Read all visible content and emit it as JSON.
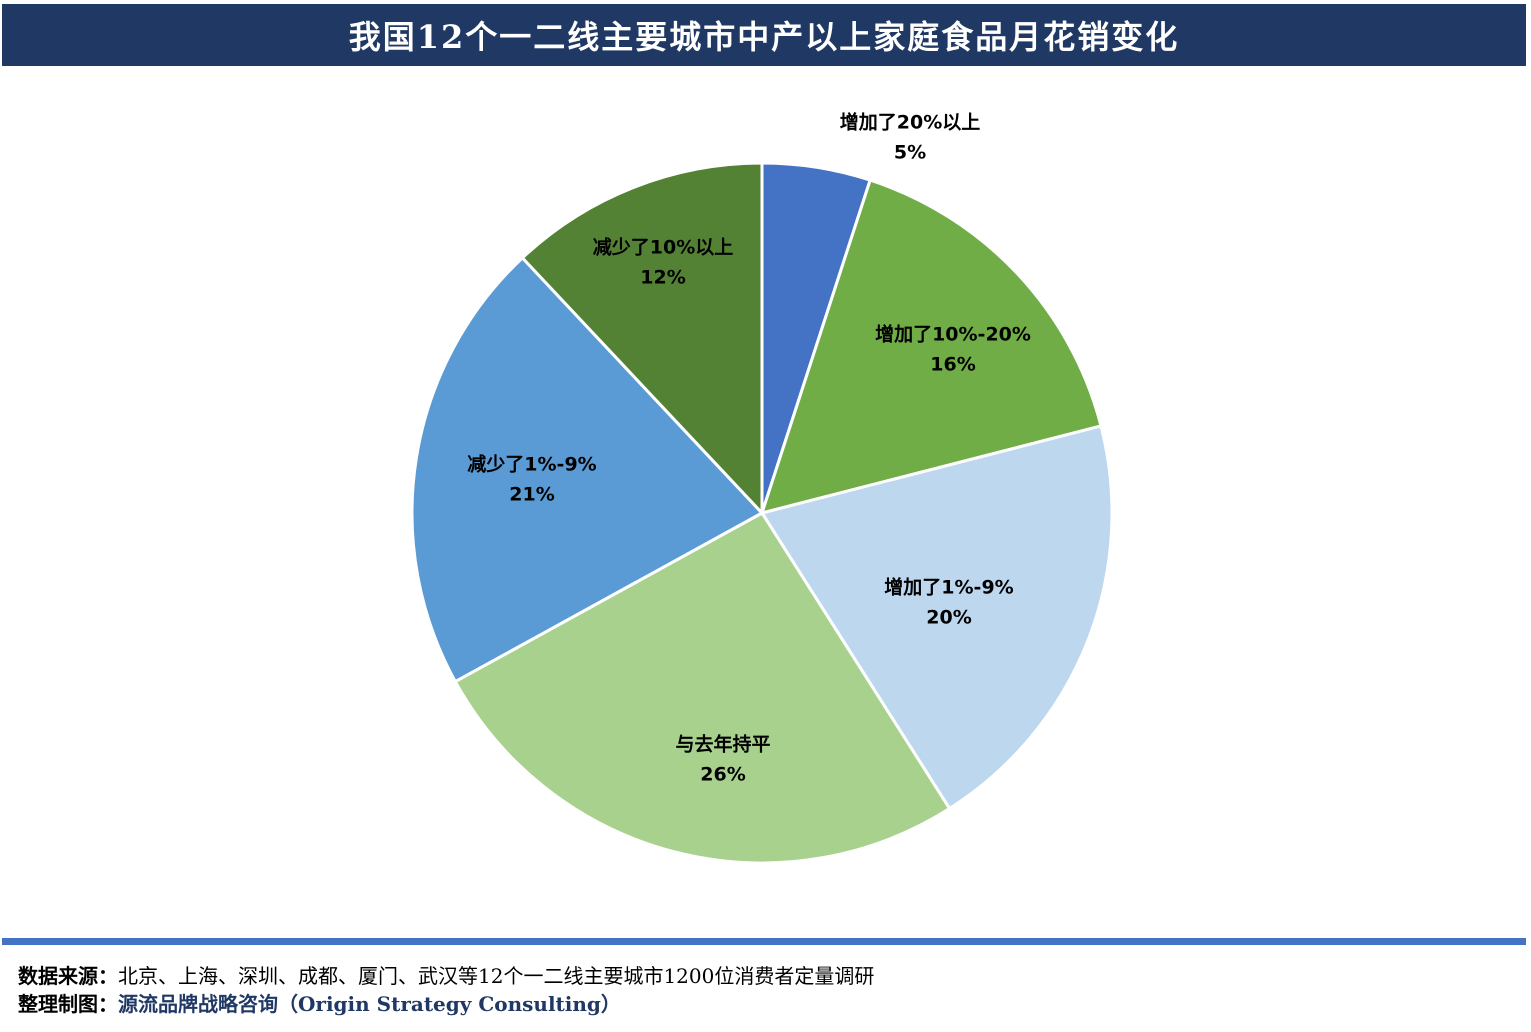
{
  "title": "我国12个一二线主要城市中产以上家庭食品月花销变化",
  "colors": {
    "title_bar": "#1f3864",
    "rule": "#4472c4",
    "credit_text": "#1f3864"
  },
  "chart_data": {
    "type": "pie",
    "title": "我国12个一二线主要城市中产以上家庭食品月花销变化",
    "start": "12 o'clock",
    "direction": "clockwise",
    "slices": [
      {
        "label": "增加了20%以上",
        "value": 5,
        "value_label": "5%",
        "color": "#4472c4"
      },
      {
        "label": "增加了10%-20%",
        "value": 16,
        "value_label": "16%",
        "color": "#70ad47"
      },
      {
        "label": "增加了1%-9%",
        "value": 20,
        "value_label": "20%",
        "color": "#bdd7ee"
      },
      {
        "label": "与去年持平",
        "value": 26,
        "value_label": "26%",
        "color": "#a9d18e"
      },
      {
        "label": "减少了1%-9%",
        "value": 21,
        "value_label": "21%",
        "color": "#5b9bd5"
      },
      {
        "label": "减少了10%以上",
        "value": 12,
        "value_label": "12%",
        "color": "#548235"
      }
    ]
  },
  "footer": {
    "source_label": "数据来源：",
    "source_value": "北京、上海、深圳、成都、厦门、武汉等12个一二线主要城市1200位消费者定量调研",
    "credit_label": "整理制图：",
    "credit_value": "源流品牌战略咨询（Origin Strategy Consulting）"
  }
}
